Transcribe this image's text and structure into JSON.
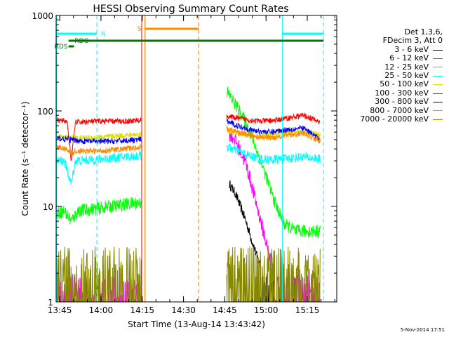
{
  "chart_data": {
    "type": "line",
    "title": "HESSI Observing Summary Count Rates",
    "xlabel": "Start Time (13-Aug-14 13:43:42)",
    "ylabel": "Count Rate (s⁻¹ detector⁻¹)",
    "yscale": "log",
    "ylim": [
      1,
      1000
    ],
    "xlim_minutes": [
      0,
      102
    ],
    "x_ticks": [
      {
        "label": "13:45",
        "t": 1.3
      },
      {
        "label": "14:00",
        "t": 16.3
      },
      {
        "label": "14:15",
        "t": 31.3
      },
      {
        "label": "14:30",
        "t": 46.3
      },
      {
        "label": "14:45",
        "t": 61.3
      },
      {
        "label": "15:00",
        "t": 76.3
      },
      {
        "label": "15:15",
        "t": 91.3
      }
    ],
    "y_ticks": [
      {
        "label": "1",
        "v": 1
      },
      {
        "label": "10",
        "v": 10
      },
      {
        "label": "100",
        "v": 100
      },
      {
        "label": "1000",
        "v": 1000
      }
    ],
    "legend": {
      "header": [
        "Det 1,3,6,",
        "FDecim 3, Att 0"
      ],
      "placement": "right"
    },
    "series": [
      {
        "name": "3 - 6 keV",
        "color": "#000000",
        "segments": [
          [
            [
              -1,
              1.0
            ]
          ],
          [
            [
              63,
              17
            ],
            [
              65,
              14
            ],
            [
              67,
              10
            ],
            [
              69,
              7
            ],
            [
              71,
              4.5
            ],
            [
              73,
              3
            ],
            [
              75,
              2
            ],
            [
              77,
              1.4
            ],
            [
              79,
              1.1
            ]
          ]
        ]
      },
      {
        "name": "6 - 12 keV",
        "color": "#ff00ff",
        "segments": [
          [
            [
              0,
              1.5
            ],
            [
              31,
              1.5
            ]
          ],
          [
            [
              63,
              58
            ],
            [
              65,
              50
            ],
            [
              67,
              38
            ],
            [
              69,
              28
            ],
            [
              71,
              17
            ],
            [
              73,
              10
            ],
            [
              75,
              6
            ],
            [
              77,
              3.5
            ],
            [
              79,
              2.2
            ],
            [
              81,
              1.6
            ],
            [
              96,
              1.6
            ]
          ]
        ]
      },
      {
        "name": "12 - 25 keV",
        "color": "#00ff00",
        "segments": [
          [
            [
              0,
              8.5
            ],
            [
              3,
              9
            ],
            [
              5.5,
              7
            ],
            [
              8,
              9
            ],
            [
              15,
              9.5
            ],
            [
              25,
              10.5
            ],
            [
              31,
              11
            ]
          ],
          [
            [
              62,
              160
            ],
            [
              65,
              120
            ],
            [
              68,
              85
            ],
            [
              71,
              55
            ],
            [
              74,
              32
            ],
            [
              77,
              18
            ],
            [
              80,
              10
            ],
            [
              83,
              6.5
            ],
            [
              87,
              5.5
            ],
            [
              96,
              5.5
            ]
          ]
        ]
      },
      {
        "name": "25 - 50 keV",
        "color": "#00ffff",
        "segments": [
          [
            [
              0,
              30
            ],
            [
              3,
              30
            ],
            [
              5.5,
              17
            ],
            [
              7,
              30
            ],
            [
              15,
              31
            ],
            [
              25,
              33
            ],
            [
              31,
              34
            ]
          ],
          [
            [
              62,
              42
            ],
            [
              66,
              38
            ],
            [
              70,
              34
            ],
            [
              75,
              31
            ],
            [
              80,
              31
            ],
            [
              85,
              32
            ],
            [
              90,
              33
            ],
            [
              96,
              31
            ]
          ]
        ]
      },
      {
        "name": "50 - 100 keV",
        "color": "#dddd00",
        "segments": [
          [
            [
              0,
              53
            ],
            [
              5,
              53
            ],
            [
              10,
              52
            ],
            [
              20,
              54
            ],
            [
              31,
              57
            ]
          ],
          [
            [
              62,
              62
            ],
            [
              66,
              58
            ],
            [
              72,
              54
            ],
            [
              78,
              55
            ],
            [
              84,
              58
            ],
            [
              90,
              62
            ],
            [
              96,
              56
            ]
          ]
        ]
      },
      {
        "name": "100 - 300 keV",
        "color": "#ff0000",
        "segments": [
          [
            [
              0,
              80
            ],
            [
              4,
              78
            ],
            [
              5.5,
              30
            ],
            [
              7,
              76
            ],
            [
              15,
              78
            ],
            [
              25,
              78
            ],
            [
              31,
              80
            ]
          ],
          [
            [
              62,
              88
            ],
            [
              68,
              82
            ],
            [
              74,
              78
            ],
            [
              80,
              80
            ],
            [
              86,
              86
            ],
            [
              90,
              90
            ],
            [
              96,
              76
            ]
          ]
        ]
      },
      {
        "name": "300 - 800 keV",
        "color": "#0000ff",
        "segments": [
          [
            [
              0,
              52
            ],
            [
              5,
              50
            ],
            [
              10,
              48
            ],
            [
              20,
              48
            ],
            [
              31,
              50
            ]
          ],
          [
            [
              62,
              78
            ],
            [
              66,
              70
            ],
            [
              72,
              62
            ],
            [
              78,
              60
            ],
            [
              84,
              64
            ],
            [
              90,
              66
            ],
            [
              96,
              50
            ]
          ]
        ]
      },
      {
        "name": "800 - 7000 keV",
        "color": "#ff8800",
        "segments": [
          [
            [
              0,
              42
            ],
            [
              4,
              40
            ],
            [
              5.5,
              36
            ],
            [
              7,
              38
            ],
            [
              15,
              38
            ],
            [
              25,
              40
            ],
            [
              31,
              42
            ]
          ],
          [
            [
              62,
              66
            ],
            [
              66,
              60
            ],
            [
              72,
              54
            ],
            [
              78,
              52
            ],
            [
              84,
              56
            ],
            [
              90,
              58
            ],
            [
              96,
              48
            ]
          ]
        ]
      },
      {
        "name": "7000 - 20000 keV",
        "color": "#888800",
        "segments": [
          [
            [
              0,
              2.7
            ],
            [
              31,
              2.7
            ]
          ],
          [
            [
              62,
              2.8
            ],
            [
              96,
              3.0
            ]
          ]
        ]
      }
    ],
    "flags": [
      {
        "label": "N",
        "color": "#00ffff"
      },
      {
        "label": "S",
        "color": "#ff8800"
      },
      {
        "label": "RDO",
        "color": "#007700"
      },
      {
        "label": "RDS",
        "color": "#007700"
      }
    ],
    "date_stamp": "5-Nov-2014 17:51"
  }
}
